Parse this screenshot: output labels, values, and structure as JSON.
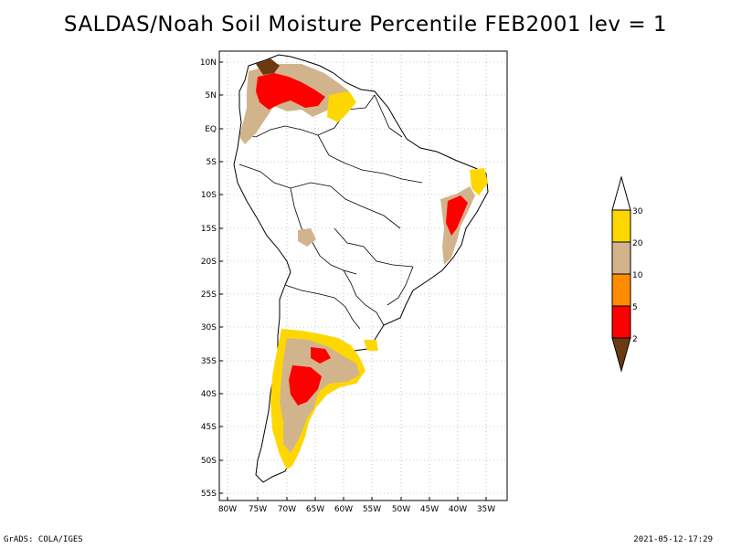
{
  "title": "SALDAS/Noah Soil Moisture Percentile FEB2001 lev = 1",
  "footer": {
    "left": "GrADS: COLA/IGES",
    "right": "2021-05-12-17:29"
  },
  "axes": {
    "lat_labels": [
      "10N",
      "5N",
      "EQ",
      "5S",
      "10S",
      "15S",
      "20S",
      "25S",
      "30S",
      "35S",
      "40S",
      "45S",
      "50S",
      "55S"
    ],
    "lon_labels": [
      "80W",
      "75W",
      "70W",
      "65W",
      "60W",
      "55W",
      "50W",
      "45W",
      "40W",
      "35W"
    ]
  },
  "legend": {
    "colors": {
      "below_2": "#6b3a10",
      "2_5": "#ff0000",
      "5_10": "#ff8c00",
      "10_20": "#d2b48c",
      "20_30": "#ffd700",
      "above_30": "#ffffff"
    },
    "labels": [
      "2",
      "5",
      "10",
      "20",
      "30"
    ]
  }
}
